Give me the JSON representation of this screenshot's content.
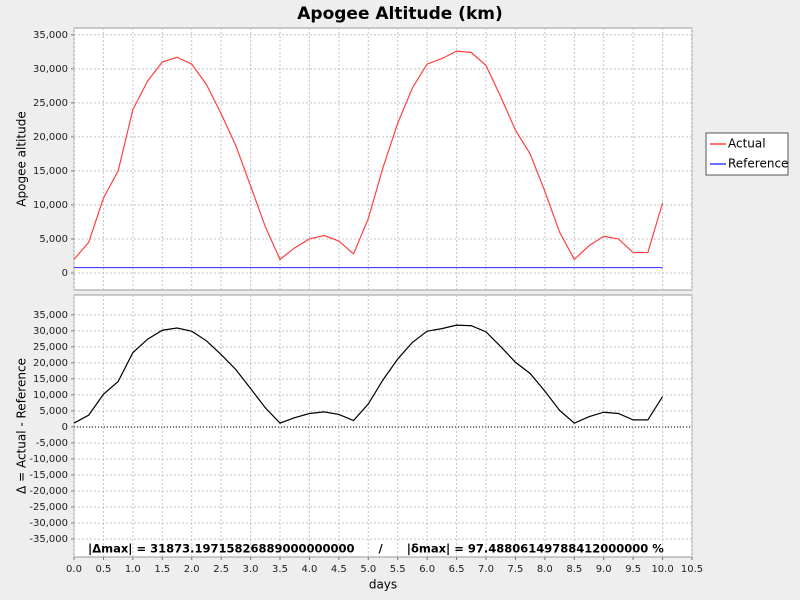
{
  "chart_data": [
    {
      "type": "line",
      "title": "Apogee Altitude (km)",
      "y_label": "Apogee altitude",
      "legend": "right",
      "grid": true,
      "x": [
        0,
        0.25,
        0.5,
        0.75,
        1,
        1.25,
        1.5,
        1.75,
        2,
        2.25,
        2.5,
        2.75,
        3,
        3.25,
        3.5,
        3.75,
        4,
        4.25,
        4.5,
        4.75,
        5,
        5.25,
        5.5,
        5.75,
        6,
        6.25,
        6.5,
        6.75,
        7,
        7.25,
        7.5,
        7.75,
        8,
        8.25,
        8.5,
        8.75,
        9,
        9.25,
        9.5,
        9.75,
        10
      ],
      "series": [
        {
          "name": "Actual",
          "color": "#ff4040",
          "values": [
            2000,
            4500,
            11000,
            15000,
            24000,
            28200,
            31000,
            31700,
            30700,
            27700,
            23400,
            18700,
            12800,
            6800,
            2000,
            3700,
            5000,
            5500,
            4700,
            2800,
            8000,
            15500,
            22000,
            27200,
            30700,
            31500,
            32600,
            32400,
            30500,
            25900,
            21000,
            17500,
            12000,
            6000,
            2000,
            4000,
            5400,
            5000,
            3000,
            3000,
            10300
          ]
        },
        {
          "name": "Reference",
          "color": "#4040ff",
          "values": [
            800,
            800,
            800,
            800,
            800,
            800,
            800,
            800,
            800,
            800,
            800,
            800,
            800,
            800,
            800,
            800,
            800,
            800,
            800,
            800,
            800,
            800,
            800,
            800,
            800,
            800,
            800,
            800,
            800,
            800,
            800,
            800,
            800,
            800,
            800,
            800,
            800,
            800,
            800,
            800,
            800
          ]
        }
      ],
      "ylim": [
        -2500,
        36000
      ],
      "yticks": [
        0,
        {
          "value": 5000,
          "label": "5,000"
        },
        {
          "value": 10000,
          "label": "10,000"
        },
        {
          "value": 15000,
          "label": "15,000"
        },
        {
          "value": 20000,
          "label": "20,000"
        },
        {
          "value": 25000,
          "label": "25,000"
        },
        {
          "value": 30000,
          "label": "30,000"
        },
        {
          "value": 35000,
          "label": "35,000"
        }
      ]
    },
    {
      "type": "line",
      "y_label": "Δ = Actual - Reference",
      "x_label": "days",
      "grid": true,
      "annotation": "|Δmax| = 31873.19715826889000000000      /      |δmax| = 97.48806149788412000000 %",
      "x": [
        0,
        0.25,
        0.5,
        0.75,
        1,
        1.25,
        1.5,
        1.75,
        2,
        2.25,
        2.5,
        2.75,
        3,
        3.25,
        3.5,
        3.75,
        4,
        4.25,
        4.5,
        4.75,
        5,
        5.25,
        5.5,
        5.75,
        6,
        6.25,
        6.5,
        6.75,
        7,
        7.25,
        7.5,
        7.75,
        8,
        8.25,
        8.5,
        8.75,
        9,
        9.25,
        9.5,
        9.75,
        10
      ],
      "series": [
        {
          "color": "#000000",
          "values": [
            1200,
            3700,
            10200,
            14200,
            23200,
            27400,
            30200,
            30900,
            29900,
            26900,
            22600,
            17900,
            12000,
            6000,
            1200,
            2900,
            4200,
            4700,
            3900,
            2000,
            7200,
            14700,
            21200,
            26400,
            29900,
            30700,
            31800,
            31600,
            29700,
            25100,
            20200,
            16700,
            11200,
            5200,
            1200,
            3200,
            4600,
            4200,
            2200,
            2200,
            9500
          ]
        }
      ],
      "xlim": [
        0,
        10.5
      ],
      "xticks": [
        {
          "value": 0,
          "label": "0.0"
        },
        0.5,
        {
          "value": 1,
          "label": "1.0"
        },
        1.5,
        {
          "value": 2,
          "label": "2.0"
        },
        2.5,
        {
          "value": 3,
          "label": "3.0"
        },
        3.5,
        {
          "value": 4,
          "label": "4.0"
        },
        4.5,
        {
          "value": 5,
          "label": "5.0"
        },
        5.5,
        {
          "value": 6,
          "label": "6.0"
        },
        6.5,
        {
          "value": 7,
          "label": "7.0"
        },
        7.5,
        {
          "value": 8,
          "label": "8.0"
        },
        8.5,
        {
          "value": 9,
          "label": "9.0"
        },
        9.5,
        {
          "value": 10,
          "label": "10.0"
        },
        10.5
      ],
      "ylim": [
        -40600,
        41200
      ],
      "yticks": [
        {
          "value": -35000,
          "label": "-35,000"
        },
        {
          "value": -30000,
          "label": "-30,000"
        },
        {
          "value": -25000,
          "label": "-25,000"
        },
        {
          "value": -20000,
          "label": "-20,000"
        },
        {
          "value": -15000,
          "label": "-15,000"
        },
        {
          "value": -10000,
          "label": "-10,000"
        },
        {
          "value": -5000,
          "label": "-5,000"
        },
        0,
        {
          "value": 5000,
          "label": "5,000"
        },
        {
          "value": 10000,
          "label": "10,000"
        },
        {
          "value": 15000,
          "label": "15,000"
        },
        {
          "value": 20000,
          "label": "20,000"
        },
        {
          "value": 25000,
          "label": "25,000"
        },
        {
          "value": 30000,
          "label": "30,000"
        },
        {
          "value": 35000,
          "label": "35,000"
        }
      ]
    }
  ]
}
